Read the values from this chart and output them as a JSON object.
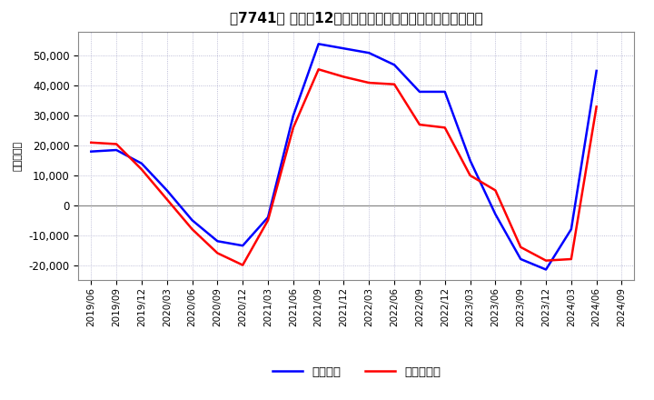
{
  "title": "［7741］ 利益の12か月移動合計の対前年同期増減額の推移",
  "ylabel": "（百万円）",
  "ylim": [
    -25000,
    58000
  ],
  "yticks": [
    -20000,
    -10000,
    0,
    10000,
    20000,
    30000,
    40000,
    50000
  ],
  "legend_labels": [
    "経常利益",
    "当期純利益"
  ],
  "line_colors": [
    "#0000ff",
    "#ff0000"
  ],
  "dates": [
    "2019/06",
    "2019/09",
    "2019/12",
    "2020/03",
    "2020/06",
    "2020/09",
    "2020/12",
    "2021/03",
    "2021/06",
    "2021/09",
    "2021/12",
    "2022/03",
    "2022/06",
    "2022/09",
    "2022/12",
    "2023/03",
    "2023/06",
    "2023/09",
    "2023/12",
    "2024/03",
    "2024/06",
    "2024/09"
  ],
  "ordinary_profit": [
    18000,
    18500,
    14000,
    5000,
    -5000,
    -12000,
    -13500,
    -4000,
    30000,
    54000,
    52500,
    51000,
    47000,
    38000,
    38000,
    15000,
    -3000,
    -18000,
    -21500,
    -8000,
    45000,
    null
  ],
  "net_profit": [
    21000,
    20500,
    12000,
    2000,
    -8000,
    -16000,
    -20000,
    -5000,
    26000,
    45500,
    43000,
    41000,
    40500,
    27000,
    26000,
    10000,
    5000,
    -14000,
    -18500,
    -18000,
    33000,
    null
  ],
  "background_color": "#ffffff",
  "grid_color": "#aaaacc",
  "zero_line_color": "#888888"
}
